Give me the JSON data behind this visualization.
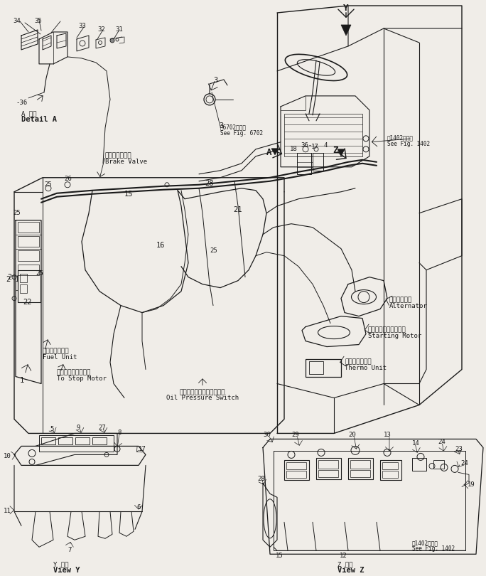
{
  "background_color": "#f0ede8",
  "line_color": "#1a1a1a",
  "figsize": [
    6.84,
    8.1
  ],
  "dpi": 100,
  "labels": {
    "detail_a_jp": "A 詳細",
    "detail_a_en": "Detail A",
    "brake_valve_jp": "ブレーキバルブ",
    "brake_valve_en": "Brake Valve",
    "fuel_unit_jp": "フェルユニット",
    "fuel_unit_en": "Fuel Unit",
    "to_stop_motor_jp": "ストップモーターへ",
    "to_stop_motor_en": "To Stop Motor",
    "alternator_jp": "オルタネータ",
    "alternator_en": "Alternator",
    "starting_motor_jp": "スターティングモータ",
    "starting_motor_en": "Starting Motor",
    "thermo_unit_jp": "サーモユニット",
    "thermo_unit_en": "Thermo Unit",
    "oil_pressure_switch_jp": "オイルプレッシャスイッチ",
    "oil_pressure_switch_en": "Oil Pressure Switch",
    "see_fig_6702_jp": "第6702図参照",
    "see_fig_6702_en": "See Fig. 6702",
    "see_fig_1402_jp": "第1402図参照",
    "see_fig_1402_en": "See Fig. 1402",
    "see_fig_1402b_jp": "第1402図参照",
    "see_fig_1402b_en": "See Fig. 1402",
    "view_y_jp": "Y 矢視",
    "view_y_en": "View Y",
    "view_z_jp": "Z 矢視",
    "view_z_en": "View Z"
  },
  "font_size_tiny": 5.5,
  "font_size_small": 6.5,
  "font_size_medium": 7.5,
  "font_size_large": 9
}
